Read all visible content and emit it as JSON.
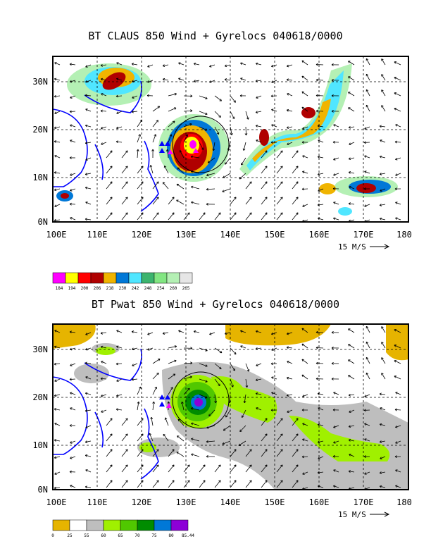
{
  "map1": {
    "title": "BT CLAUS 850 Wind + Gyrelocs 040618/0000",
    "scale_label": "15 M/S",
    "legend": {
      "colors": [
        "#ff00ff",
        "#ffff00",
        "#ff0000",
        "#b00000",
        "#f0b400",
        "#0078d7",
        "#50e6ff",
        "#3cb46e",
        "#82e682",
        "#b4f0b4",
        "#e6e6e6"
      ],
      "labels": [
        "184",
        "194",
        "200",
        "206",
        "218",
        "230",
        "242",
        "248",
        "254",
        "260",
        "265"
      ]
    }
  },
  "map2": {
    "title": "BT Pwat 850 Wind + Gyrelocs 040618/0000",
    "scale_label": "15 M/S",
    "legend": {
      "colors": [
        "#e6b400",
        "#ffffff",
        "#bebebe",
        "#a0f000",
        "#50c800",
        "#008c00",
        "#0078d7",
        "#8c00d7"
      ],
      "labels": [
        "0",
        "25",
        "55",
        "60",
        "65",
        "70",
        "75",
        "80",
        "85.44"
      ]
    }
  },
  "axes": {
    "x_ticks": [
      "100E",
      "110E",
      "120E",
      "130E",
      "140E",
      "150E",
      "160E",
      "170E",
      "180"
    ],
    "y_ticks": [
      "0N",
      "10N",
      "20N",
      "30N"
    ]
  }
}
